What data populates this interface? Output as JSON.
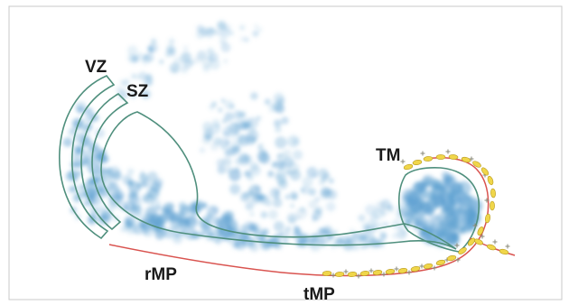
{
  "labels": {
    "vz": "VZ",
    "sz": "SZ",
    "tm": "TM",
    "rmp": "rMP",
    "tmp": "tMP"
  },
  "colors": {
    "region_outline": "#4f8f7d",
    "membrane_line": "#d9534f",
    "cell_fill": "#f0d64a",
    "staining": "#5b9fd0"
  }
}
